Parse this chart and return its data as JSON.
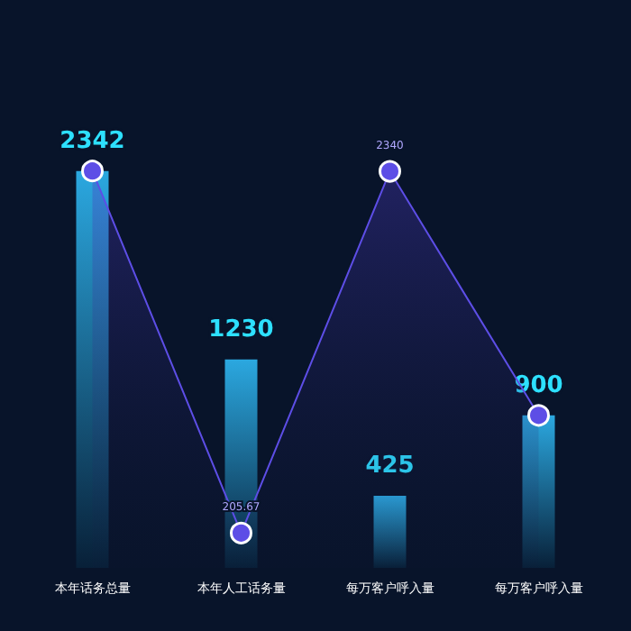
{
  "chart_data": {
    "type": "bar",
    "categories": [
      "本年话务总量",
      "本年人工话务量",
      "每万客户呼入量",
      "每万客户呼入量"
    ],
    "marker": "circle",
    "series": [
      {
        "color": "#2ba8e0",
        "values": [
          2342,
          1230,
          425,
          900
        ],
        "value_labels": [
          "2342",
          "1230",
          "425",
          "900"
        ]
      },
      {
        "type": "area",
        "color": "#5d4ee6",
        "values": [
          2342,
          205.67,
          2340,
          900
        ],
        "value_labels": [
          null,
          "205.67",
          "2340",
          null
        ]
      }
    ]
  }
}
